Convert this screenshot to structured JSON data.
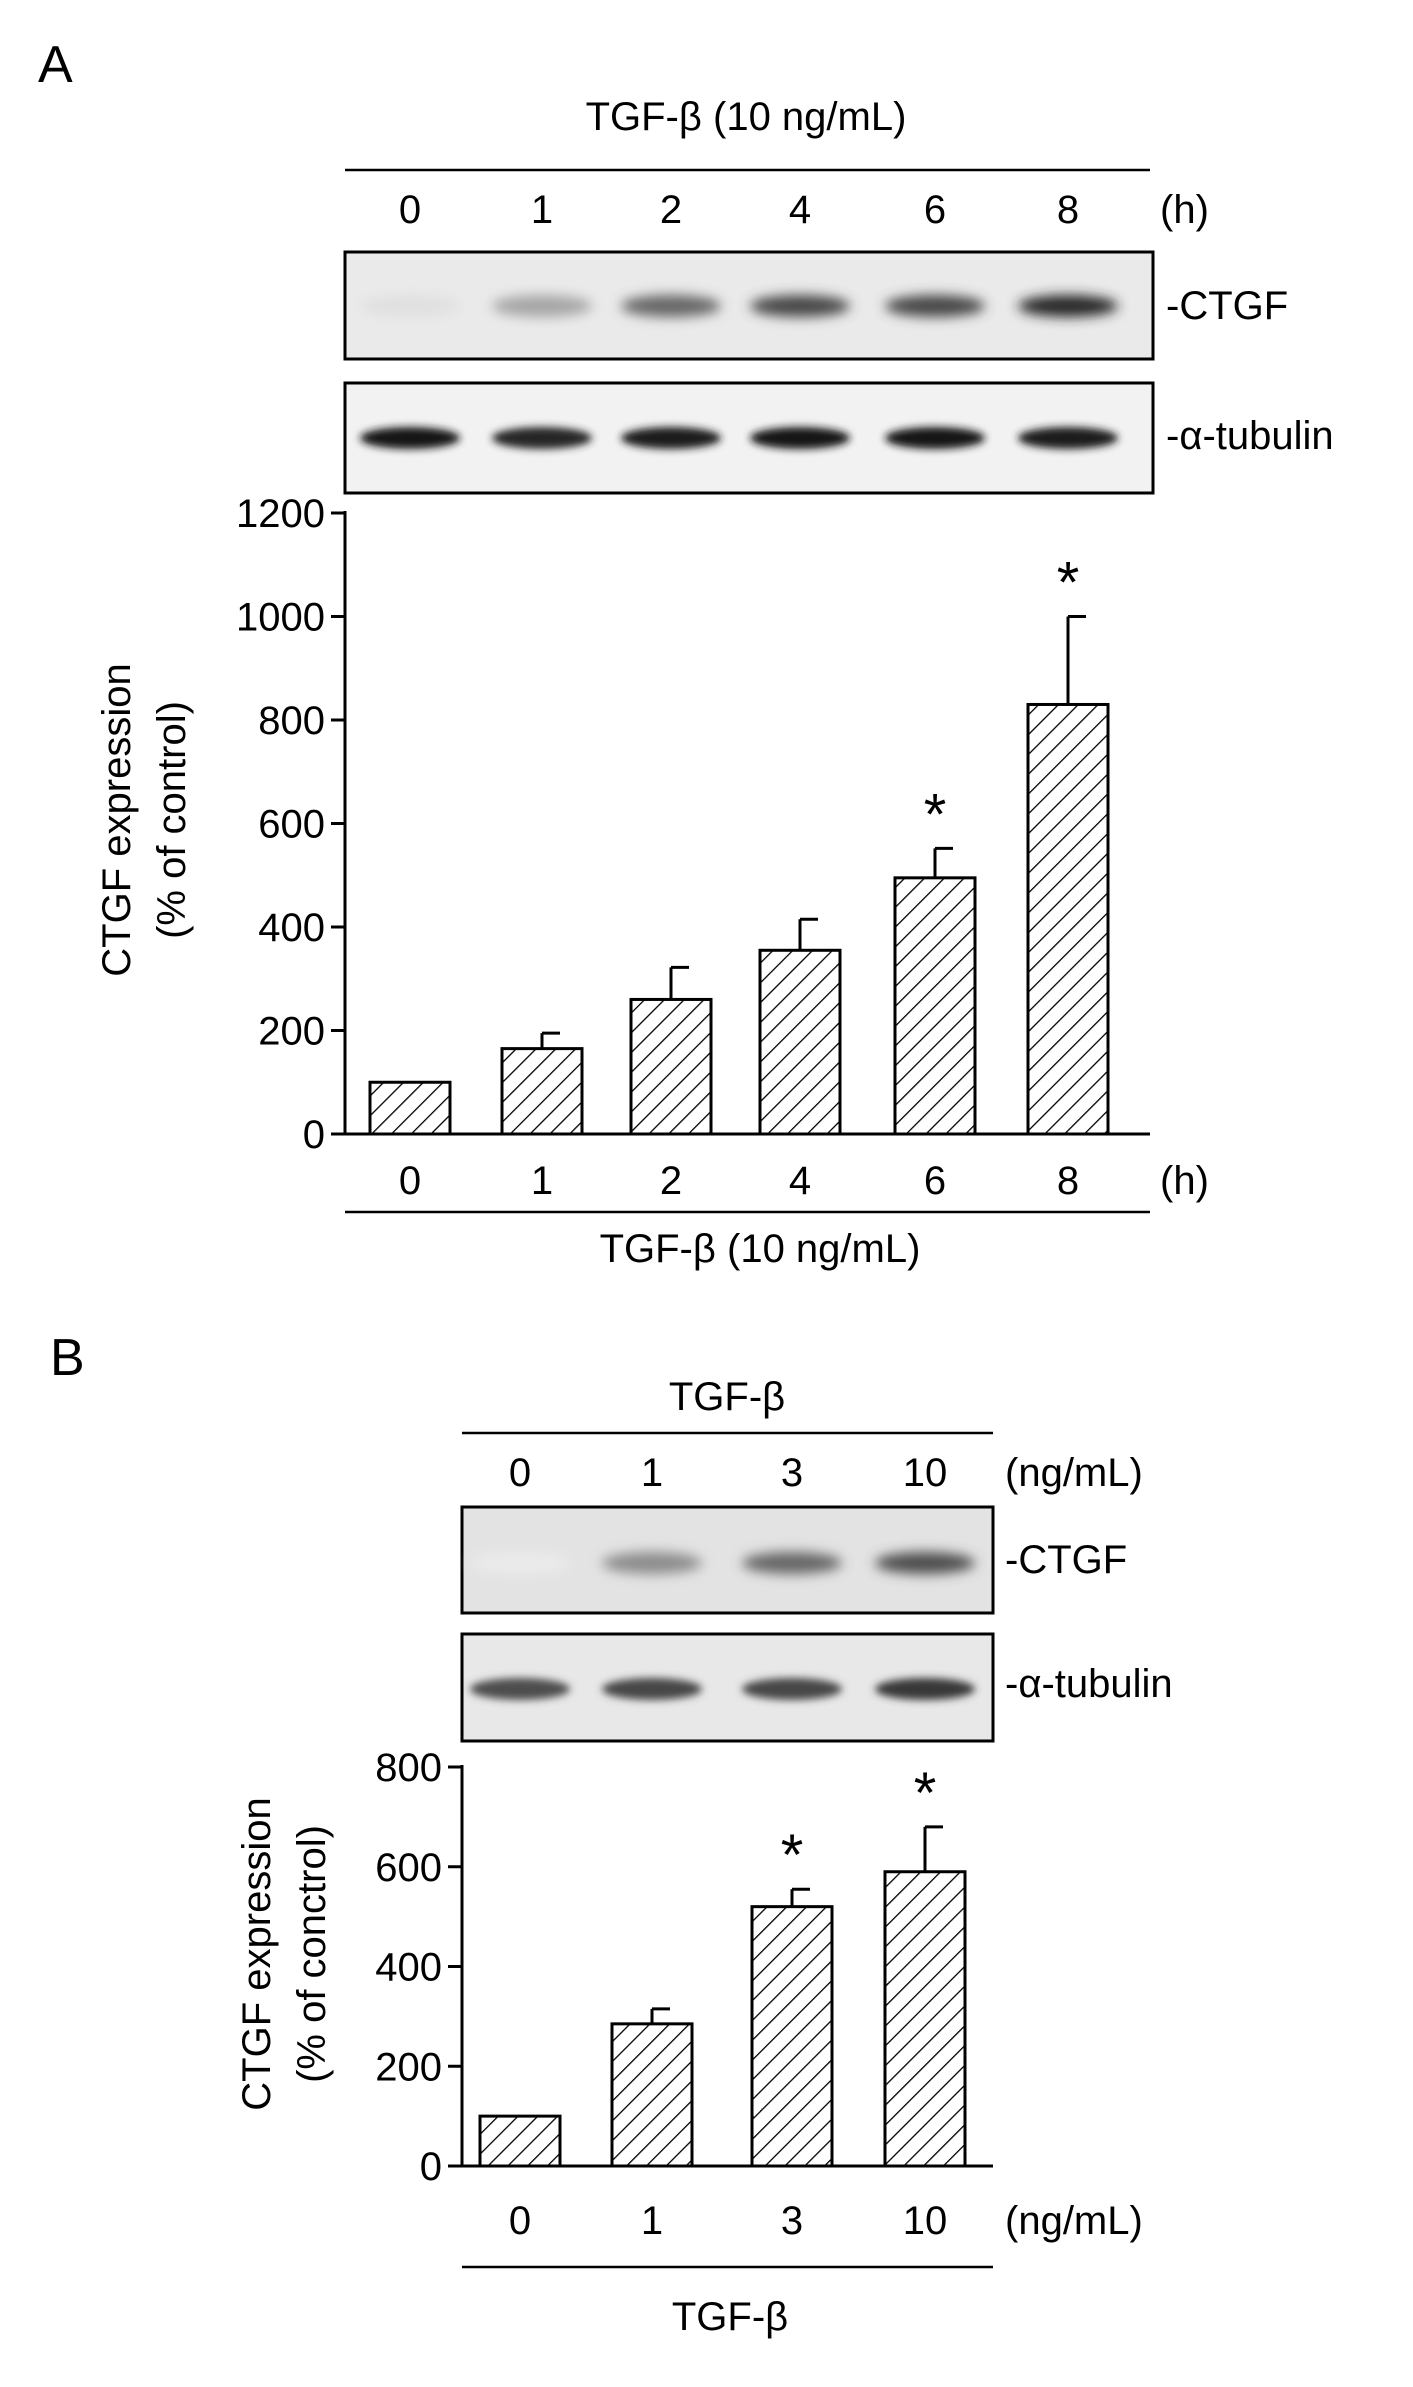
{
  "panel_a": {
    "label": "A",
    "treatment_top": "TGF-β (10 ng/mL)",
    "lanes": [
      "0",
      "1",
      "2",
      "4",
      "6",
      "8"
    ],
    "unit": "(h)",
    "blot_ctgf_label": "-CTGF",
    "blot_tubulin_label": "-α-tubulin",
    "ctgf_band_intensity": [
      0.12,
      0.35,
      0.6,
      0.72,
      0.72,
      0.85
    ],
    "tubulin_band_intensity": [
      0.9,
      0.85,
      0.88,
      0.9,
      0.92,
      0.88
    ],
    "ylabel_line1": "CTGF expression",
    "ylabel_line2": "(% of control)",
    "xunit": "(h)",
    "xlabel": "TGF-β (10 ng/mL)"
  },
  "panel_b": {
    "label": "B",
    "treatment_top": "TGF-β",
    "lanes": [
      "0",
      "1",
      "3",
      "10"
    ],
    "unit": "(ng/mL)",
    "blot_ctgf_label": "-CTGF",
    "blot_tubulin_label": "-α-tubulin",
    "ctgf_band_intensity": [
      0.08,
      0.45,
      0.6,
      0.7
    ],
    "tubulin_band_intensity": [
      0.7,
      0.72,
      0.72,
      0.78
    ],
    "ylabel_line1": "CTGF expression",
    "ylabel_line2": "(% of conctrol)",
    "xunit": "(ng/mL)",
    "xlabel": "TGF-β"
  },
  "chart_data": [
    {
      "type": "bar",
      "panel": "A",
      "categories": [
        "0",
        "1",
        "2",
        "4",
        "6",
        "8"
      ],
      "values": [
        100,
        165,
        260,
        355,
        495,
        830
      ],
      "errors": [
        0,
        30,
        62,
        60,
        57,
        170
      ],
      "significant": [
        false,
        false,
        false,
        false,
        true,
        true
      ],
      "significance_marker": "*",
      "pattern": "diagonal-hatch",
      "ylabel": "CTGF expression (% of control)",
      "xlabel": "TGF-β (10 ng/mL)",
      "xunit": "(h)",
      "ylim": [
        0,
        1200
      ],
      "yticks": [
        0,
        200,
        400,
        600,
        800,
        1000,
        1200
      ],
      "grid": false
    },
    {
      "type": "bar",
      "panel": "B",
      "categories": [
        "0",
        "1",
        "3",
        "10"
      ],
      "values": [
        100,
        285,
        520,
        590
      ],
      "errors": [
        0,
        30,
        35,
        90
      ],
      "significant": [
        false,
        false,
        true,
        true
      ],
      "significance_marker": "*",
      "pattern": "diagonal-hatch",
      "ylabel": "CTGF expression (% of conctrol)",
      "xlabel": "TGF-β",
      "xunit": "(ng/mL)",
      "ylim": [
        0,
        800
      ],
      "yticks": [
        0,
        200,
        400,
        600,
        800
      ],
      "grid": false
    }
  ]
}
